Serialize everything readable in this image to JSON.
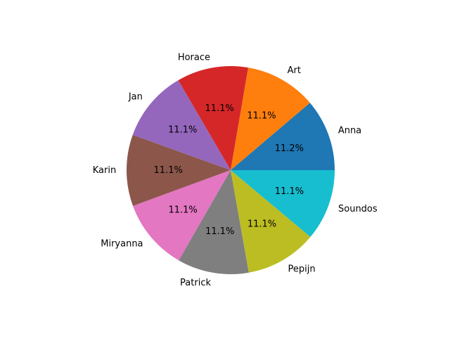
{
  "chart_data": {
    "type": "pie",
    "title": "",
    "start_angle_deg": 0,
    "direction": "counterclockwise",
    "slices": [
      {
        "label": "Anna",
        "value": 11.2,
        "pct_label": "11.2%",
        "color": "#1f77b4"
      },
      {
        "label": "Art",
        "value": 11.1,
        "pct_label": "11.1%",
        "color": "#ff7f0e"
      },
      {
        "label": "Horace",
        "value": 11.1,
        "pct_label": "11.1%",
        "color": "#d62728"
      },
      {
        "label": "Jan",
        "value": 11.1,
        "pct_label": "11.1%",
        "color": "#9467bd"
      },
      {
        "label": "Karin",
        "value": 11.1,
        "pct_label": "11.1%",
        "color": "#8c564b"
      },
      {
        "label": "Miryanna",
        "value": 11.1,
        "pct_label": "11.1%",
        "color": "#e377c2"
      },
      {
        "label": "Patrick",
        "value": 11.1,
        "pct_label": "11.1%",
        "color": "#7f7f7f"
      },
      {
        "label": "Pepijn",
        "value": 11.1,
        "pct_label": "11.1%",
        "color": "#bcbd22"
      },
      {
        "label": "Soundos",
        "value": 11.1,
        "pct_label": "11.1%",
        "color": "#17becf"
      }
    ]
  }
}
